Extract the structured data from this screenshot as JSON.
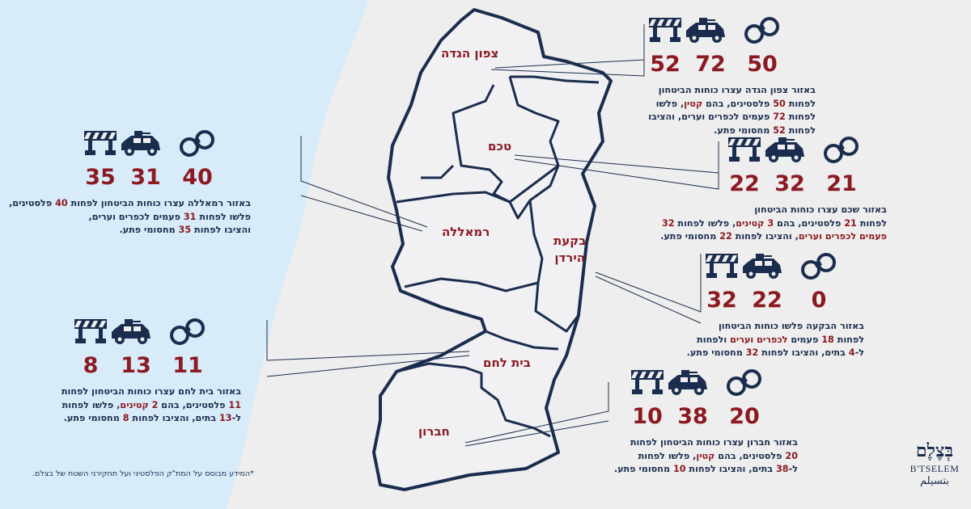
{
  "regions": {
    "north": "צפון הגדה",
    "nablus": "טכם",
    "ramallah": "רמאללה",
    "jordan_valley_line1": "בקעת",
    "jordan_valley_line2": "הירדן",
    "bethlehem": "בית לחם",
    "hebron": "חברון"
  },
  "icon_names": [
    "roadblock-icon",
    "military-jeep-icon",
    "handcuffs-icon"
  ],
  "colors": {
    "accent": "#8b1a22",
    "navy": "#1b2d4e",
    "sea": "#d8ebf8",
    "land": "#f1f1f3"
  },
  "stats": {
    "north": {
      "checkpoints": "52",
      "vehicles": "72",
      "arrests": "50",
      "lines": [
        [
          "באזור צפון הגדה עצרו כוחות הביטחון"
        ],
        [
          "לפחות ",
          "*50",
          " פלסטינים, בהם ",
          "*קטין",
          ", פלשו"
        ],
        [
          "לפחות ",
          "*72",
          " פעמים לכפרים וערים, והציבו"
        ],
        [
          "לפחות ",
          "*52",
          " מחסומי פתע."
        ]
      ]
    },
    "nablus": {
      "checkpoints": "22",
      "vehicles": "32",
      "arrests": "21",
      "lines": [
        [
          "באזור שכם עצרו כוחות הביטחון"
        ],
        [
          "לפחות ",
          "*21",
          " פלסטינים, בהם ",
          "*3 קטינים",
          ", פלשו לפחות ",
          "*32"
        ],
        [
          "*פעמים לכפרים וערים",
          ", והציבו לפחות ",
          "*22",
          " מחסומי פתע."
        ]
      ]
    },
    "ramallah": {
      "checkpoints": "35",
      "vehicles": "31",
      "arrests": "40",
      "lines": [
        [
          "באזור רמאללה עצרו כוחות הביטחון לפחות ",
          "*40",
          " פלסטינים,"
        ],
        [
          "פלשו לפחות ",
          "*31",
          " פעמים לכפרים וערים,"
        ],
        [
          "והציבו לפחות ",
          "*35",
          " מחסומי פתע."
        ]
      ]
    },
    "jordan_valley": {
      "checkpoints": "32",
      "vehicles": "22",
      "arrests": "0",
      "lines": [
        [
          "באזור הבקעה פלשו כוחות הביטחון"
        ],
        [
          "לפחות ",
          "*18",
          " פעמים ",
          "*לכפרים וערים",
          " ולפחות"
        ],
        [
          "ל-",
          "*4",
          " בתים, והציבו לפחות ",
          "*32",
          " מחסומי פתע."
        ]
      ]
    },
    "bethlehem": {
      "checkpoints": "8",
      "vehicles": "13",
      "arrests": "11",
      "lines": [
        [
          "באזור בית לחם עצרו כוחות הביטחון לפחות"
        ],
        [
          "*11",
          " פלסטינים, בהם ",
          "*2 קטינים",
          ", פלשו לפחות"
        ],
        [
          "ל-",
          "*13",
          " בתים, והציבו לפחות ",
          "*8",
          " מחסומי פתע."
        ]
      ]
    },
    "hebron": {
      "checkpoints": "10",
      "vehicles": "38",
      "arrests": "20",
      "lines": [
        [
          "באזור חברון עצרו כוחות הביטחון לפחות"
        ],
        [
          "*20",
          " פלסטינים, בהם ",
          "*קטין",
          ", פלשו לפחות"
        ],
        [
          "ל-",
          "*38",
          " בתים, והציבו לפחות ",
          "*10",
          " מחסומי פתע."
        ]
      ]
    }
  },
  "footnote": "*המידע מבוסס על המת\"ק הפלסטיני ועל תחקירני השטח של בצלם.",
  "logo": {
    "hebrew": "בְּצֶלֶם",
    "latin": "B'TSELEM",
    "arabic": "بتسيلم"
  }
}
